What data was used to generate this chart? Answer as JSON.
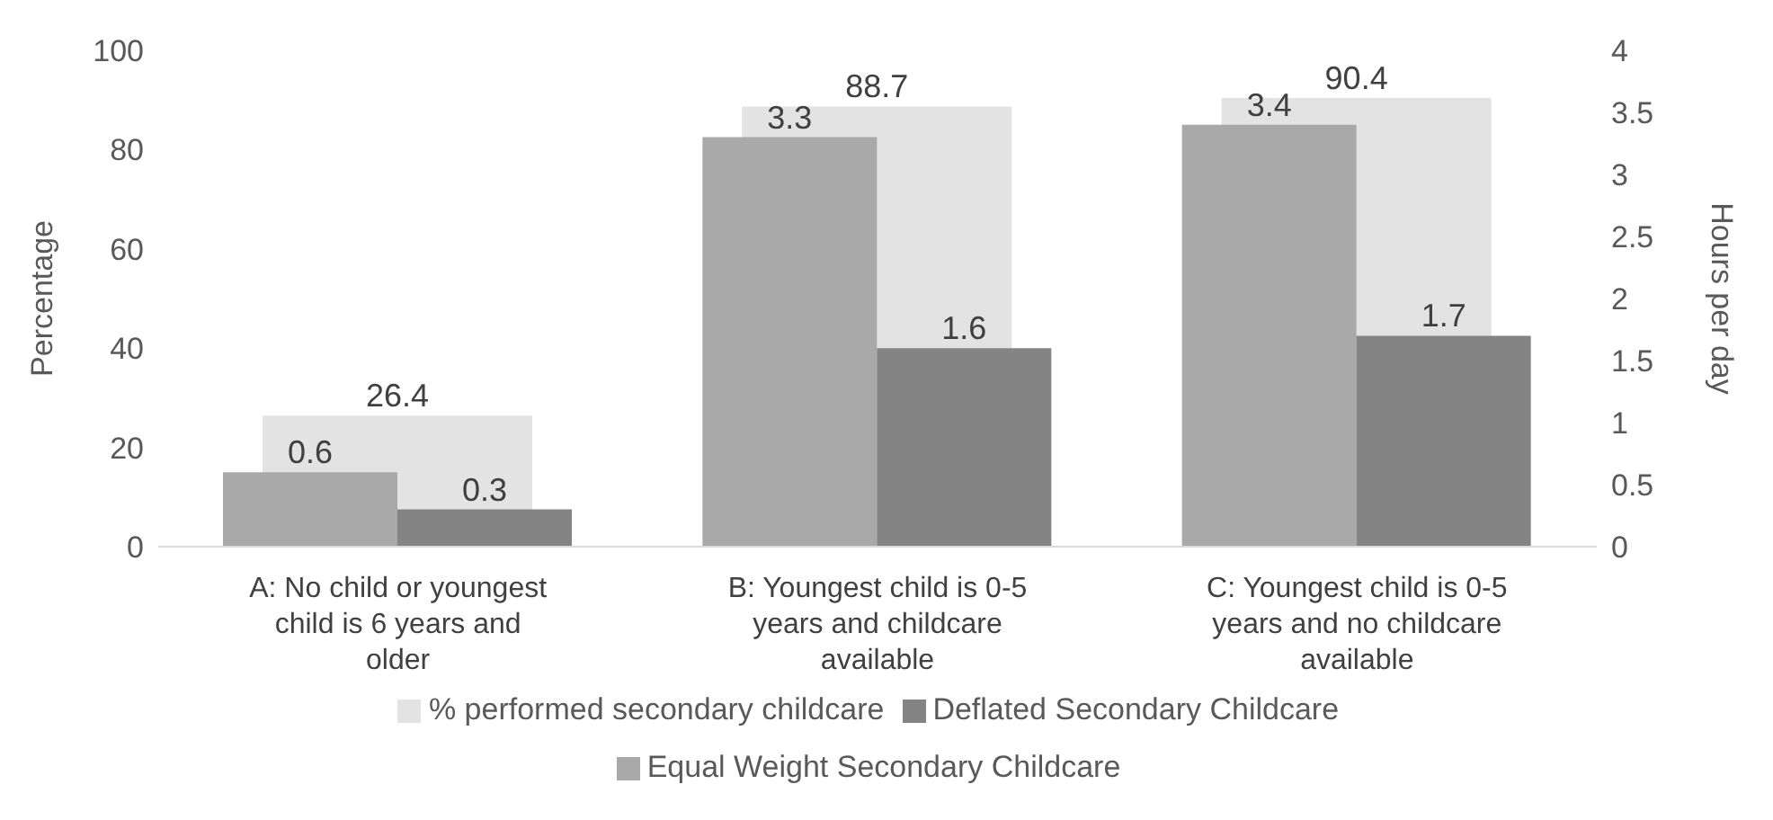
{
  "chart_data": {
    "type": "bar",
    "categories": [
      "A: No child or youngest child is 6 years and older",
      "B: Youngest child is 0-5 years and childcare available",
      "C: Youngest child is 0-5 years and no childcare available"
    ],
    "series": [
      {
        "name": "% performed secondary childcare",
        "color": "#e3e3e3",
        "values": [
          26.4,
          88.7,
          90.4
        ]
      },
      {
        "name": "Equal Weight Secondary Childcare",
        "color": "#a9a9a9",
        "values": [
          0.6,
          3.3,
          3.4
        ],
        "axis": "y2"
      },
      {
        "name": "Deflated Secondary Childcare",
        "color": "#848484",
        "values": [
          0.3,
          1.6,
          1.7
        ],
        "axis": "y2"
      }
    ],
    "ylabel": "Percentage",
    "y2label": "Hours per day",
    "ylim": [
      0,
      100
    ],
    "yticks": [
      0,
      20,
      40,
      60,
      80,
      100
    ],
    "y2lim": [
      0,
      4
    ],
    "y2ticks": [
      0,
      0.5,
      1,
      1.5,
      2,
      2.5,
      3,
      3.5,
      4
    ],
    "data_labels": true,
    "legend": "bottom",
    "grid": false
  }
}
